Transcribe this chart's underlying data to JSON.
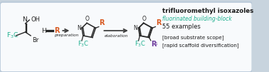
{
  "bg_color": "#f0f3f7",
  "inner_bg": "#f8fafc",
  "border_color": "#b8c8d8",
  "fig_bg": "#c8d4de",
  "title_text": "trifluoromethyl isoxazoles",
  "subtitle_text": "fluorinated building-block",
  "examples_text": "55 examples",
  "bracket1_text": "[broad substrate scope]",
  "bracket2_text": "[rapid scaffold diversification]",
  "title_color": "#1a1a1a",
  "subtitle_color": "#20b090",
  "bracket_color": "#1a1a1a",
  "orange_color": "#d85820",
  "teal_color": "#20b090",
  "dark_color": "#252525",
  "purple_color": "#7040a0",
  "preparation_text": "preparation",
  "elaboration_text": "elaboration",
  "arrow_color": "#404040"
}
